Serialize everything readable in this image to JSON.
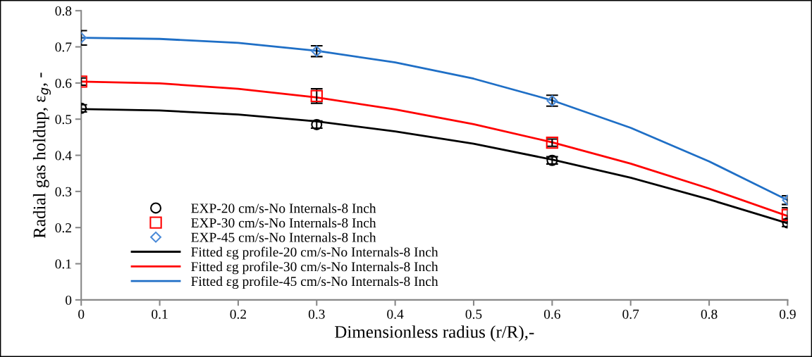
{
  "chart_data": {
    "type": "line",
    "xlabel": "Dimensionless radius (r/R),-",
    "ylabel": "Radial gas holdup, ε$_{g}$, -",
    "xlim": [
      0,
      0.9
    ],
    "xticks": [
      {
        "value": 0,
        "label": "0"
      },
      0.1,
      0.2,
      0.3,
      0.4,
      0.5,
      0.6,
      0.7,
      0.8,
      0.9
    ],
    "ylim": [
      0,
      0.8
    ],
    "yticks": [
      {
        "value": 0,
        "label": "0"
      },
      0.1,
      0.2,
      0.3,
      0.4,
      0.5,
      0.6,
      0.7,
      0.8
    ],
    "grid": false,
    "legend": "bottom left",
    "series": [
      {
        "name": "EXP-20 cm/s-No Internals-8 Inch",
        "type": "scatter",
        "marker": "circle",
        "color": "#000000",
        "x": [
          0,
          0.3,
          0.6,
          0.9
        ],
        "values": [
          0.53,
          0.485,
          0.386,
          0.213
        ],
        "errors": [
          0.01,
          0.01,
          0.01,
          0.01
        ]
      },
      {
        "name": "EXP-30 cm/s-No Internals-8 Inch",
        "type": "scatter",
        "marker": "square",
        "color": "#ff0000",
        "x": [
          0,
          0.3,
          0.6,
          0.9
        ],
        "values": [
          0.604,
          0.564,
          0.435,
          0.235
        ],
        "errors": [
          0.01,
          0.02,
          0.01,
          0.02
        ]
      },
      {
        "name": "EXP-45 cm/s-No Internals-8 Inch",
        "type": "scatter",
        "marker": "diamond",
        "color": "#4a8ad8",
        "x": [
          0,
          0.3,
          0.6,
          0.9
        ],
        "values": [
          0.725,
          0.688,
          0.551,
          0.276
        ],
        "errors": [
          0.02,
          0.015,
          0.015,
          0.012
        ]
      },
      {
        "name": "Fitted εg profile-20 cm/s-No Internals-8 Inch",
        "color": "#000000",
        "x": [
          0,
          0.1,
          0.2,
          0.3,
          0.4,
          0.5,
          0.6,
          0.7,
          0.8,
          0.9
        ],
        "values": [
          0.528,
          0.524,
          0.513,
          0.494,
          0.466,
          0.432,
          0.388,
          0.338,
          0.278,
          0.212
        ]
      },
      {
        "name": "Fitted εg profile-30 cm/s-No Internals-8 Inch",
        "color": "#ff0000",
        "x": [
          0,
          0.1,
          0.2,
          0.3,
          0.4,
          0.5,
          0.6,
          0.7,
          0.8,
          0.9
        ],
        "values": [
          0.604,
          0.599,
          0.584,
          0.56,
          0.527,
          0.486,
          0.436,
          0.377,
          0.308,
          0.232
        ]
      },
      {
        "name": "Fitted εg profile-45 cm/s-No Internals-8 Inch",
        "color": "#1f6fc6",
        "x": [
          0,
          0.1,
          0.2,
          0.3,
          0.4,
          0.5,
          0.6,
          0.7,
          0.8,
          0.9
        ],
        "values": [
          0.725,
          0.722,
          0.711,
          0.689,
          0.657,
          0.612,
          0.552,
          0.476,
          0.383,
          0.276
        ]
      }
    ]
  }
}
